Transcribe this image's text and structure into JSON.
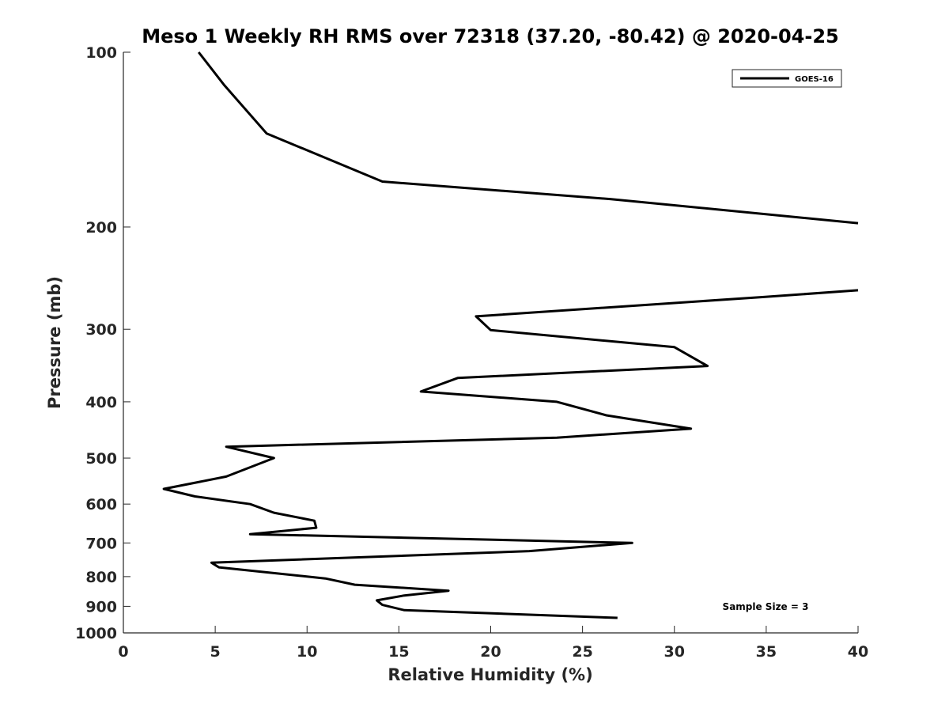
{
  "chart_data": {
    "type": "line",
    "title": "Meso 1 Weekly RH RMS over 72318 (37.20, -80.42) @ 2020-04-25",
    "xlabel": "Relative Humidity (%)",
    "ylabel": "Pressure (mb)",
    "xlim": [
      0,
      40
    ],
    "ylim": [
      100,
      1000
    ],
    "y_scale": "log",
    "y_reversed": true,
    "xticks": [
      0,
      5,
      10,
      15,
      20,
      25,
      30,
      35,
      40
    ],
    "yticks": [
      100,
      200,
      300,
      400,
      500,
      600,
      700,
      800,
      900,
      1000
    ],
    "grid": false,
    "legend_location": "top-right",
    "series": [
      {
        "name": "GOES-16",
        "color": "#000000",
        "x": [
          4.1,
          5.5,
          7.8,
          14.1,
          26.5,
          40.0,
          null,
          40.0,
          34.8,
          19.2,
          20.0,
          30.0,
          31.8,
          18.2,
          16.2,
          23.6,
          26.3,
          30.9,
          23.6,
          5.6,
          8.2,
          5.6,
          2.2,
          3.9,
          6.9,
          8.2,
          10.4,
          10.5,
          6.9,
          27.7,
          22.1,
          4.8,
          5.2,
          11.0,
          12.6,
          17.7,
          15.3,
          13.8,
          14.1,
          15.3,
          26.9
        ],
        "y": [
          100,
          114,
          138,
          167,
          179,
          197,
          null,
          257,
          264,
          285,
          301,
          322,
          347,
          364,
          384,
          400,
          422,
          445,
          461,
          478,
          500,
          538,
          565,
          582,
          600,
          621,
          641,
          659,
          676,
          700,
          723,
          757,
          771,
          806,
          826,
          846,
          862,
          879,
          895,
          914,
          942
        ]
      }
    ],
    "annotations": [
      "Sample Size = 3"
    ]
  }
}
